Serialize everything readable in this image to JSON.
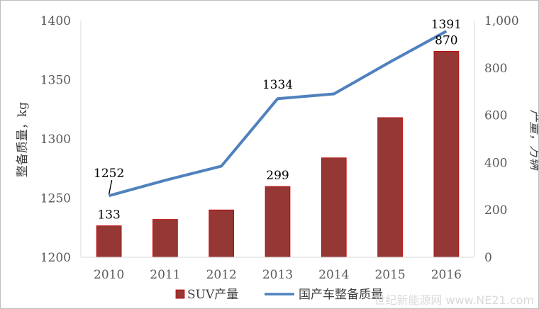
{
  "chart_data": {
    "type": "bar+line",
    "categories": [
      "2010",
      "2011",
      "2012",
      "2013",
      "2014",
      "2015",
      "2016"
    ],
    "series": [
      {
        "name": "SUV产量",
        "type": "bar",
        "axis": "right",
        "color": "#953735",
        "values": [
          133,
          160,
          200,
          299,
          420,
          590,
          870
        ]
      },
      {
        "name": "国产车整备质量",
        "type": "line",
        "axis": "left",
        "color": "#4f81bd",
        "values": [
          1252,
          1265,
          1277,
          1334,
          1338,
          1365,
          1391
        ]
      }
    ],
    "data_labels": [
      {
        "series": 0,
        "index": 0,
        "text": "133"
      },
      {
        "series": 0,
        "index": 3,
        "text": "299"
      },
      {
        "series": 0,
        "index": 6,
        "text": "870"
      },
      {
        "series": 1,
        "index": 0,
        "text": "1252"
      },
      {
        "series": 1,
        "index": 3,
        "text": "1334"
      },
      {
        "series": 1,
        "index": 6,
        "text": "1391"
      }
    ],
    "y_left": {
      "label": "整备质量，kg",
      "range": [
        1200,
        1400
      ],
      "ticks": [
        "1200",
        "1250",
        "1300",
        "1350",
        "1400"
      ]
    },
    "y_right": {
      "label": "产量，万辆",
      "range": [
        0,
        1000
      ],
      "ticks": [
        "0",
        "200",
        "400",
        "600",
        "800",
        "1,000"
      ]
    },
    "grid": false,
    "legend_position": "bottom"
  },
  "watermark": "世纪新能源网 www.NE21.com"
}
